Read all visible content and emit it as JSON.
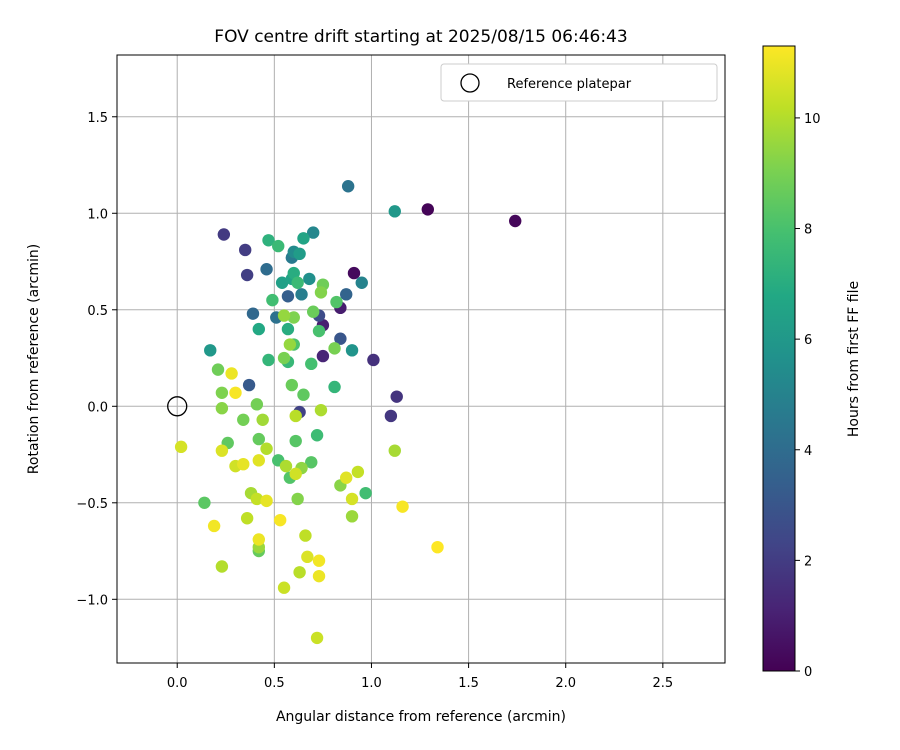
{
  "chart_data": {
    "type": "scatter",
    "title": "FOV centre drift starting at 2025/08/15 06:46:43",
    "xlabel": "Angular distance from reference (arcmin)",
    "ylabel": "Rotation from reference (arcmin)",
    "xlim": [
      -0.31,
      2.82
    ],
    "ylim": [
      -1.33,
      1.82
    ],
    "xticks": [
      0.0,
      0.5,
      1.0,
      1.5,
      2.0,
      2.5
    ],
    "xtick_labels": [
      "0.0",
      "0.5",
      "1.0",
      "1.5",
      "2.0",
      "2.5"
    ],
    "yticks": [
      -1.0,
      -0.5,
      0.0,
      0.5,
      1.0,
      1.5
    ],
    "ytick_labels": [
      "−1.0",
      "−0.5",
      "0.0",
      "0.5",
      "1.0",
      "1.5"
    ],
    "grid": true,
    "legend": {
      "placement": "top-right",
      "entries": [
        "Reference platepar"
      ]
    },
    "reference_point": {
      "x": 0.0,
      "y": 0.0,
      "marker": "hollow-circle",
      "label": "Reference platepar"
    },
    "colorbar": {
      "label": "Hours from first FF file",
      "colormap": "viridis",
      "range": [
        0,
        11.3
      ],
      "ticks": [
        0,
        2,
        4,
        6,
        8,
        10
      ],
      "tick_labels": [
        "0",
        "2",
        "4",
        "6",
        "8",
        "10"
      ]
    },
    "points": [
      {
        "x": 1.29,
        "y": 1.02,
        "t": 0.1
      },
      {
        "x": 1.74,
        "y": 0.96,
        "t": 0.2
      },
      {
        "x": 0.91,
        "y": 0.69,
        "t": 0.3
      },
      {
        "x": 0.84,
        "y": 0.51,
        "t": 0.9
      },
      {
        "x": 0.75,
        "y": 0.42,
        "t": 1.0
      },
      {
        "x": 0.75,
        "y": 0.26,
        "t": 1.2
      },
      {
        "x": 1.01,
        "y": 0.24,
        "t": 1.6
      },
      {
        "x": 1.13,
        "y": 0.05,
        "t": 1.7
      },
      {
        "x": 1.1,
        "y": -0.05,
        "t": 1.8
      },
      {
        "x": 0.24,
        "y": 0.89,
        "t": 1.9
      },
      {
        "x": 0.35,
        "y": 0.81,
        "t": 2.0
      },
      {
        "x": 0.36,
        "y": 0.68,
        "t": 2.1
      },
      {
        "x": 0.63,
        "y": -0.03,
        "t": 2.2
      },
      {
        "x": 0.73,
        "y": 0.47,
        "t": 2.6
      },
      {
        "x": 0.84,
        "y": 0.35,
        "t": 3.0
      },
      {
        "x": 0.37,
        "y": 0.11,
        "t": 3.2
      },
      {
        "x": 0.57,
        "y": 0.57,
        "t": 3.4
      },
      {
        "x": 0.87,
        "y": 0.58,
        "t": 3.6
      },
      {
        "x": 0.39,
        "y": 0.48,
        "t": 3.8
      },
      {
        "x": 0.46,
        "y": 0.71,
        "t": 4.0
      },
      {
        "x": 0.51,
        "y": 0.46,
        "t": 4.2
      },
      {
        "x": 0.88,
        "y": 1.14,
        "t": 4.3
      },
      {
        "x": 0.59,
        "y": 0.77,
        "t": 4.6
      },
      {
        "x": 0.64,
        "y": 0.58,
        "t": 4.8
      },
      {
        "x": 0.95,
        "y": 0.64,
        "t": 5.0
      },
      {
        "x": 0.7,
        "y": 0.9,
        "t": 5.2
      },
      {
        "x": 0.6,
        "y": 0.8,
        "t": 5.4
      },
      {
        "x": 0.68,
        "y": 0.66,
        "t": 5.6
      },
      {
        "x": 0.9,
        "y": 0.29,
        "t": 5.8
      },
      {
        "x": 1.12,
        "y": 1.01,
        "t": 6.0
      },
      {
        "x": 0.17,
        "y": 0.29,
        "t": 6.0
      },
      {
        "x": 0.63,
        "y": 0.79,
        "t": 6.2
      },
      {
        "x": 0.54,
        "y": 0.64,
        "t": 6.4
      },
      {
        "x": 0.59,
        "y": 0.66,
        "t": 6.5
      },
      {
        "x": 0.65,
        "y": 0.87,
        "t": 6.6
      },
      {
        "x": 0.42,
        "y": 0.4,
        "t": 6.8
      },
      {
        "x": 0.57,
        "y": 0.4,
        "t": 7.0
      },
      {
        "x": 0.6,
        "y": 0.69,
        "t": 7.0
      },
      {
        "x": 0.47,
        "y": 0.86,
        "t": 7.2
      },
      {
        "x": 0.47,
        "y": 0.24,
        "t": 7.4
      },
      {
        "x": 0.81,
        "y": 0.1,
        "t": 7.4
      },
      {
        "x": 0.57,
        "y": 0.23,
        "t": 7.5
      },
      {
        "x": 0.52,
        "y": 0.83,
        "t": 7.6
      },
      {
        "x": 0.62,
        "y": 0.64,
        "t": 7.6
      },
      {
        "x": 0.72,
        "y": -0.15,
        "t": 7.7
      },
      {
        "x": 0.49,
        "y": 0.55,
        "t": 7.8
      },
      {
        "x": 0.97,
        "y": -0.45,
        "t": 7.8
      },
      {
        "x": 0.69,
        "y": 0.22,
        "t": 7.9
      },
      {
        "x": 0.52,
        "y": -0.28,
        "t": 8.0
      },
      {
        "x": 0.73,
        "y": 0.39,
        "t": 8.0
      },
      {
        "x": 0.6,
        "y": 0.32,
        "t": 8.1
      },
      {
        "x": 0.58,
        "y": -0.37,
        "t": 8.2
      },
      {
        "x": 0.82,
        "y": 0.54,
        "t": 8.2
      },
      {
        "x": 0.61,
        "y": -0.18,
        "t": 8.3
      },
      {
        "x": 0.69,
        "y": -0.29,
        "t": 8.3
      },
      {
        "x": 0.14,
        "y": -0.5,
        "t": 8.4
      },
      {
        "x": 0.65,
        "y": 0.06,
        "t": 8.5
      },
      {
        "x": 0.26,
        "y": -0.19,
        "t": 8.5
      },
      {
        "x": 0.42,
        "y": -0.75,
        "t": 8.6
      },
      {
        "x": 0.42,
        "y": -0.17,
        "t": 8.6
      },
      {
        "x": 0.7,
        "y": 0.49,
        "t": 8.7
      },
      {
        "x": 0.59,
        "y": 0.11,
        "t": 8.7
      },
      {
        "x": 0.21,
        "y": 0.19,
        "t": 8.8
      },
      {
        "x": 0.75,
        "y": 0.63,
        "t": 8.8
      },
      {
        "x": 0.34,
        "y": -0.07,
        "t": 8.9
      },
      {
        "x": 0.41,
        "y": 0.01,
        "t": 8.9
      },
      {
        "x": 0.81,
        "y": 0.3,
        "t": 9.0
      },
      {
        "x": 0.55,
        "y": 0.25,
        "t": 9.0
      },
      {
        "x": 0.23,
        "y": 0.07,
        "t": 9.1
      },
      {
        "x": 0.6,
        "y": 0.46,
        "t": 9.1
      },
      {
        "x": 0.74,
        "y": 0.59,
        "t": 9.2
      },
      {
        "x": 0.62,
        "y": -0.48,
        "t": 9.2
      },
      {
        "x": 0.23,
        "y": -0.01,
        "t": 9.3
      },
      {
        "x": 0.84,
        "y": -0.41,
        "t": 9.3
      },
      {
        "x": 0.64,
        "y": -0.32,
        "t": 9.4
      },
      {
        "x": 0.58,
        "y": 0.32,
        "t": 9.5
      },
      {
        "x": 0.55,
        "y": 0.47,
        "t": 9.5
      },
      {
        "x": 0.42,
        "y": -0.73,
        "t": 9.6
      },
      {
        "x": 0.9,
        "y": -0.57,
        "t": 9.6
      },
      {
        "x": 0.44,
        "y": -0.07,
        "t": 9.7
      },
      {
        "x": 1.12,
        "y": -0.23,
        "t": 9.8
      },
      {
        "x": 0.38,
        "y": -0.45,
        "t": 9.8
      },
      {
        "x": 0.74,
        "y": -0.02,
        "t": 9.9
      },
      {
        "x": 0.56,
        "y": -0.31,
        "t": 9.9
      },
      {
        "x": 0.46,
        "y": -0.22,
        "t": 10.0
      },
      {
        "x": 0.23,
        "y": -0.83,
        "t": 10.0
      },
      {
        "x": 0.63,
        "y": -0.86,
        "t": 10.1
      },
      {
        "x": 0.61,
        "y": -0.05,
        "t": 10.1
      },
      {
        "x": 0.36,
        "y": -0.58,
        "t": 10.2
      },
      {
        "x": 0.66,
        "y": -0.67,
        "t": 10.2
      },
      {
        "x": 0.41,
        "y": -0.48,
        "t": 10.3
      },
      {
        "x": 0.93,
        "y": -0.34,
        "t": 10.3
      },
      {
        "x": 0.72,
        "y": -1.2,
        "t": 10.4
      },
      {
        "x": 0.55,
        "y": -0.94,
        "t": 10.4
      },
      {
        "x": 0.61,
        "y": -0.35,
        "t": 10.5
      },
      {
        "x": 0.3,
        "y": -0.31,
        "t": 10.5
      },
      {
        "x": 0.9,
        "y": -0.48,
        "t": 10.6
      },
      {
        "x": 0.02,
        "y": -0.21,
        "t": 10.6
      },
      {
        "x": 0.67,
        "y": -0.78,
        "t": 10.7
      },
      {
        "x": 0.23,
        "y": -0.23,
        "t": 10.7
      },
      {
        "x": 0.42,
        "y": -0.28,
        "t": 10.8
      },
      {
        "x": 0.87,
        "y": -0.37,
        "t": 10.8
      },
      {
        "x": 0.34,
        "y": -0.3,
        "t": 10.9
      },
      {
        "x": 0.46,
        "y": -0.49,
        "t": 10.9
      },
      {
        "x": 0.73,
        "y": -0.88,
        "t": 11.0
      },
      {
        "x": 0.42,
        "y": -0.69,
        "t": 11.0
      },
      {
        "x": 0.28,
        "y": 0.17,
        "t": 11.0
      },
      {
        "x": 0.73,
        "y": -0.8,
        "t": 11.1
      },
      {
        "x": 0.19,
        "y": -0.62,
        "t": 11.1
      },
      {
        "x": 0.53,
        "y": -0.59,
        "t": 11.2
      },
      {
        "x": 1.16,
        "y": -0.52,
        "t": 11.2
      },
      {
        "x": 0.3,
        "y": 0.07,
        "t": 11.2
      },
      {
        "x": 1.34,
        "y": -0.73,
        "t": 11.3
      }
    ]
  }
}
